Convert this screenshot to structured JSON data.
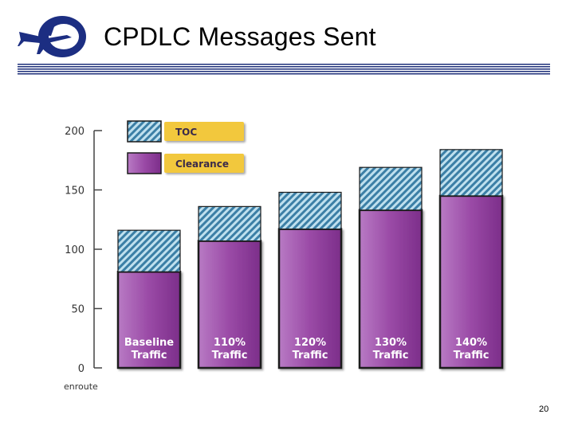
{
  "slide": {
    "title": "CPDLC Messages Sent",
    "page_number": "20"
  },
  "colors": {
    "clearance": "#8f3a9a",
    "toc": "#4a94b8",
    "legend_box": "#f2c83c",
    "title_rule": "#1e2f7a"
  },
  "chart_data": {
    "type": "bar",
    "stacked": true,
    "categories": [
      [
        "Baseline",
        "Traffic"
      ],
      [
        "110%",
        "Traffic"
      ],
      [
        "120%",
        "Traffic"
      ],
      [
        "130%",
        "Traffic"
      ],
      [
        "140%",
        "Traffic"
      ]
    ],
    "series": [
      {
        "name": "Clearance",
        "values": [
          81,
          107,
          117,
          133,
          145
        ]
      },
      {
        "name": "TOC",
        "values": [
          35,
          29,
          31,
          36,
          39
        ]
      }
    ],
    "ylim": [
      0,
      200
    ],
    "yticks": [
      0,
      50,
      100,
      150,
      200
    ],
    "footer_label": "enroute",
    "legend_position": "top-left"
  }
}
